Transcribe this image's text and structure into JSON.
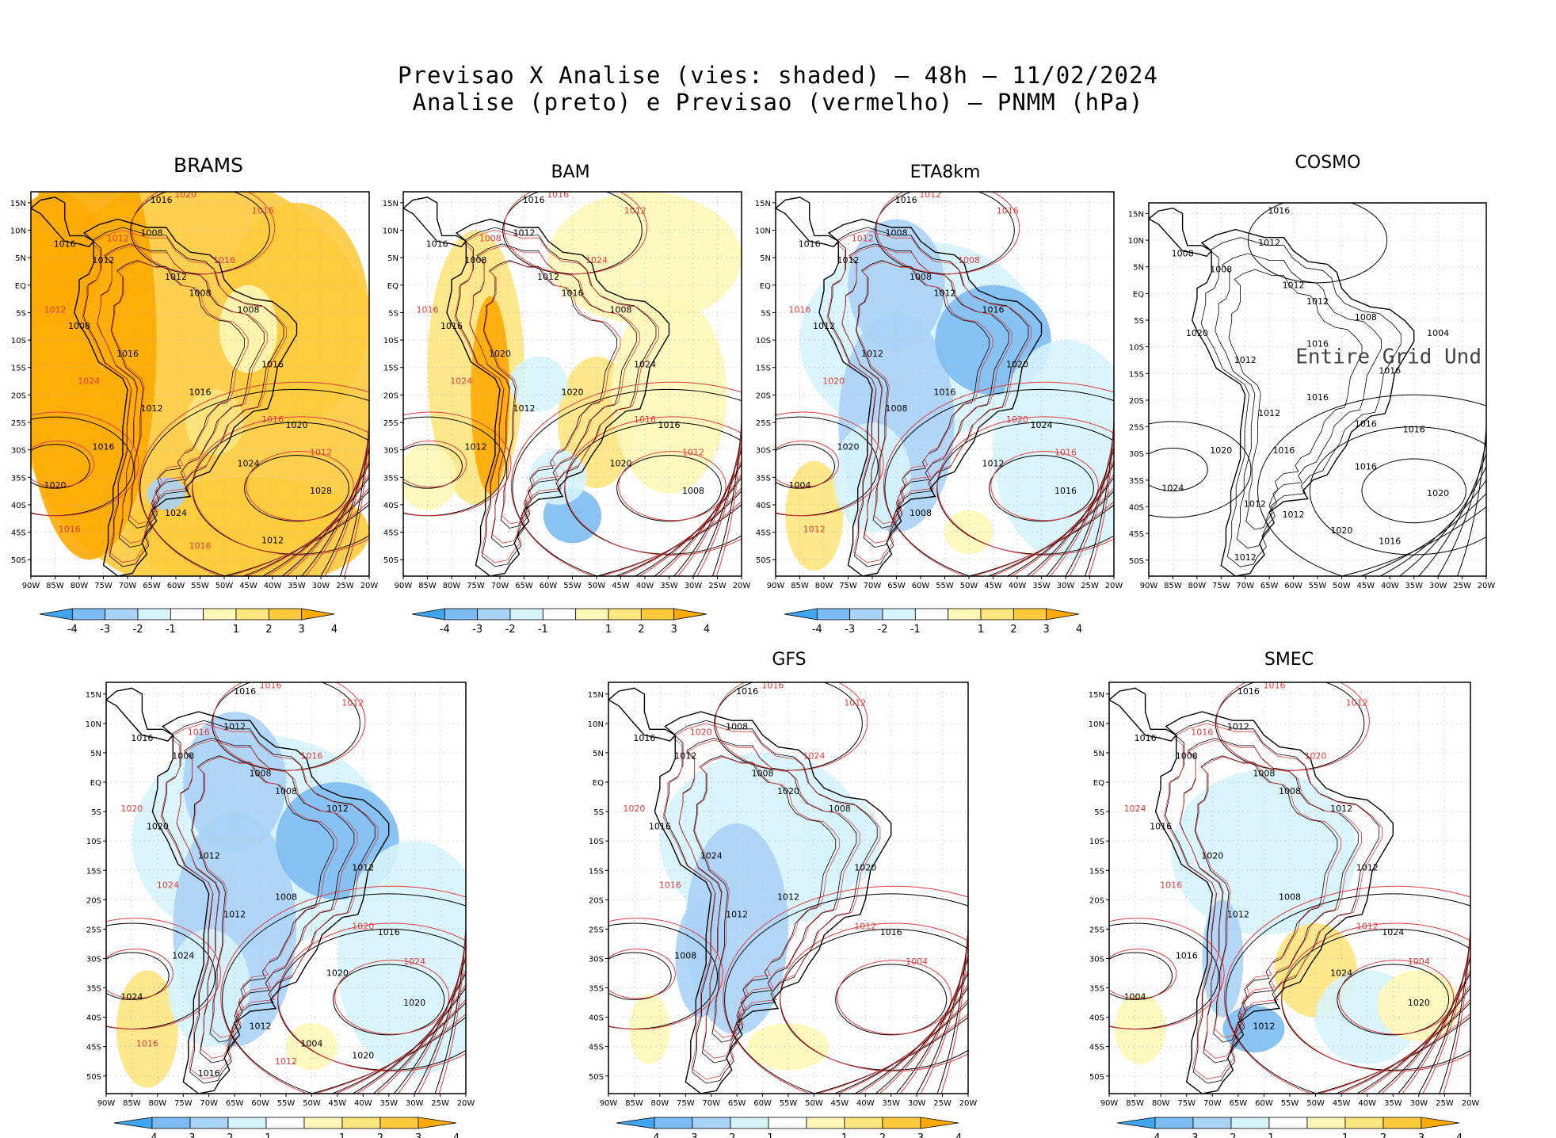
{
  "title_line1": "Previsao X Analise (vies: shaded) – 48h – 11/02/2024",
  "title_line2": "Analise (preto) e Previsao (vermelho) – PNMM (hPa)",
  "colors": {
    "analysis_contour": "#000000",
    "forecast_contour": "#e23c3c",
    "neg4": "#3fa6ee",
    "neg3": "#7cbcf3",
    "neg2": "#aad3f7",
    "neg1": "#d6f4fb",
    "pos1": "#fff8b8",
    "pos2": "#ffe680",
    "pos3": "#ffcb3c",
    "pos4": "#ffaa00",
    "land_outline": "#000000",
    "grid_dot": "#bbbbbb"
  },
  "chart_data": [
    {
      "type": "heatmap",
      "name": "BRAMS",
      "title": "BRAMS",
      "x_ticks": [
        "90W",
        "85W",
        "80W",
        "75W",
        "70W",
        "65W",
        "60W",
        "55W",
        "50W",
        "45W",
        "40W",
        "35W",
        "30W",
        "25W",
        "20W"
      ],
      "y_ticks": [
        "15N",
        "10N",
        "5N",
        "EQ",
        "5S",
        "10S",
        "15S",
        "20S",
        "25S",
        "30S",
        "35S",
        "40S",
        "45S",
        "50S"
      ],
      "xlim": [
        -90,
        -20
      ],
      "ylim": [
        -53,
        17
      ],
      "colorbar_ticks": [
        "-4",
        "-3",
        "-2",
        "-1",
        "1",
        "2",
        "3",
        "4"
      ],
      "bias_pattern": "warm",
      "contour_labels_analysis": [
        "1016",
        "1016",
        "1008",
        "1012",
        "1012",
        "1008",
        "1008",
        "1008",
        "1016",
        "1016",
        "1016",
        "1012",
        "1020",
        "1016",
        "1024",
        "1028",
        "1024",
        "1020",
        "1012"
      ],
      "contour_labels_forecast": [
        "1020",
        "1016",
        "1012",
        "1016",
        "1012",
        "1024",
        "1016",
        "1012",
        "1016",
        "1016"
      ],
      "grid": true
    },
    {
      "type": "heatmap",
      "name": "BAM",
      "title": "BAM",
      "x_ticks": [
        "90W",
        "85W",
        "80W",
        "75W",
        "70W",
        "65W",
        "60W",
        "55W",
        "50W",
        "45W",
        "40W",
        "35W",
        "30W",
        "25W",
        "20W"
      ],
      "y_ticks": [
        "15N",
        "10N",
        "5N",
        "EQ",
        "5S",
        "10S",
        "15S",
        "20S",
        "25S",
        "30S",
        "35S",
        "40S",
        "45S",
        "50S"
      ],
      "xlim": [
        -90,
        -20
      ],
      "ylim": [
        -53,
        17
      ],
      "colorbar_ticks": [
        "-4",
        "-3",
        "-2",
        "-1",
        "1",
        "2",
        "3",
        "4"
      ],
      "bias_pattern": "mixed",
      "contour_labels_analysis": [
        "1016",
        "1016",
        "1012",
        "1008",
        "1012",
        "1016",
        "1008",
        "1016",
        "1020",
        "1024",
        "1020",
        "1012",
        "1016",
        "1012",
        "1020",
        "1008"
      ],
      "contour_labels_forecast": [
        "1016",
        "1012",
        "1008",
        "1024",
        "1016",
        "1024",
        "1016",
        "1012"
      ],
      "grid": true
    },
    {
      "type": "heatmap",
      "name": "ETA8km",
      "title": "ETA8km",
      "x_ticks": [
        "90W",
        "85W",
        "80W",
        "75W",
        "70W",
        "65W",
        "60W",
        "55W",
        "50W",
        "45W",
        "40W",
        "35W",
        "30W",
        "25W",
        "20W"
      ],
      "y_ticks": [
        "15N",
        "10N",
        "5N",
        "EQ",
        "5S",
        "10S",
        "15S",
        "20S",
        "25S",
        "30S",
        "35S",
        "40S",
        "45S",
        "50S"
      ],
      "xlim": [
        -90,
        -20
      ],
      "ylim": [
        -53,
        17
      ],
      "colorbar_ticks": [
        "-4",
        "-3",
        "-2",
        "-1",
        "1",
        "2",
        "3",
        "4"
      ],
      "bias_pattern": "cold",
      "contour_labels_analysis": [
        "1016",
        "1016",
        "1008",
        "1012",
        "1008",
        "1012",
        "1016",
        "1012",
        "1012",
        "1020",
        "1016",
        "1008",
        "1024",
        "1020",
        "1012",
        "1016",
        "1008",
        "1004"
      ],
      "contour_labels_forecast": [
        "1012",
        "1016",
        "1012",
        "1008",
        "1016",
        "1020",
        "1020",
        "1016",
        "1012"
      ],
      "grid": true
    },
    {
      "type": "heatmap",
      "name": "COSMO",
      "title": "COSMO",
      "x_ticks": [
        "90W",
        "85W",
        "80W",
        "75W",
        "70W",
        "65W",
        "60W",
        "55W",
        "50W",
        "45W",
        "40W",
        "35W",
        "30W",
        "25W",
        "20W"
      ],
      "y_ticks": [
        "15N",
        "10N",
        "5N",
        "EQ",
        "5S",
        "10S",
        "15S",
        "20S",
        "25S",
        "30S",
        "35S",
        "40S",
        "45S",
        "50S"
      ],
      "xlim": [
        -90,
        -20
      ],
      "ylim": [
        -53,
        17
      ],
      "colorbar_ticks": [],
      "bias_pattern": "none",
      "annotation": "Entire Grid Und",
      "contour_labels_analysis": [
        "1016",
        "1008",
        "1012",
        "1008",
        "1012",
        "1012",
        "1008",
        "1020",
        "1012",
        "1016",
        "1016",
        "1012",
        "1016",
        "1020",
        "1016",
        "1020",
        "1012",
        "1024",
        "1016",
        "1012",
        "1020",
        "1016",
        "1004",
        "1012",
        "1016",
        "1016"
      ],
      "contour_labels_forecast": [],
      "grid": true
    },
    {
      "type": "heatmap",
      "name": "",
      "title": "",
      "x_ticks": [
        "90W",
        "85W",
        "80W",
        "75W",
        "70W",
        "65W",
        "60W",
        "55W",
        "50W",
        "45W",
        "40W",
        "35W",
        "30W",
        "25W",
        "20W"
      ],
      "y_ticks": [
        "15N",
        "10N",
        "5N",
        "EQ",
        "5S",
        "10S",
        "15S",
        "20S",
        "25S",
        "30S",
        "35S",
        "40S",
        "45S",
        "50S"
      ],
      "xlim": [
        -90,
        -20
      ],
      "ylim": [
        -53,
        17
      ],
      "colorbar_ticks": [
        "-4",
        "-3",
        "-2",
        "-1",
        "1",
        "2",
        "3",
        "4"
      ],
      "bias_pattern": "cold",
      "contour_labels_analysis": [
        "1016",
        "1016",
        "1012",
        "1008",
        "1008",
        "1008",
        "1012",
        "1020",
        "1012",
        "1012",
        "1008",
        "1012",
        "1016",
        "1024",
        "1020",
        "1020",
        "1012",
        "1024",
        "1020",
        "1016",
        "1004"
      ],
      "contour_labels_forecast": [
        "1016",
        "1012",
        "1016",
        "1016",
        "1020",
        "1024",
        "1020",
        "1024",
        "1016",
        "1012"
      ],
      "grid": true
    },
    {
      "type": "heatmap",
      "name": "GFS",
      "title": "GFS",
      "x_ticks": [
        "90W",
        "85W",
        "80W",
        "75W",
        "70W",
        "65W",
        "60W",
        "55W",
        "50W",
        "45W",
        "40W",
        "35W",
        "30W",
        "25W",
        "20W"
      ],
      "y_ticks": [
        "15N",
        "10N",
        "5N",
        "EQ",
        "5S",
        "10S",
        "15S",
        "20S",
        "25S",
        "30S",
        "35S",
        "40S",
        "45S",
        "50S"
      ],
      "xlim": [
        -90,
        -20
      ],
      "ylim": [
        -53,
        17
      ],
      "colorbar_ticks": [
        "-4",
        "-3",
        "-2",
        "-1",
        "1",
        "2",
        "3",
        "4"
      ],
      "bias_pattern": "cold_light",
      "contour_labels_analysis": [
        "1016",
        "1016",
        "1008",
        "1012",
        "1008",
        "1020",
        "1008",
        "1016",
        "1024",
        "1020",
        "1012",
        "1012",
        "1016",
        "1008"
      ],
      "contour_labels_forecast": [
        "1016",
        "1012",
        "1020",
        "1024",
        "1020",
        "1016",
        "1012",
        "1004"
      ],
      "grid": true
    },
    {
      "type": "heatmap",
      "name": "SMEC",
      "title": "SMEC",
      "x_ticks": [
        "90W",
        "85W",
        "80W",
        "75W",
        "70W",
        "65W",
        "60W",
        "55W",
        "50W",
        "45W",
        "40W",
        "35W",
        "30W",
        "25W",
        "20W"
      ],
      "y_ticks": [
        "15N",
        "10N",
        "5N",
        "EQ",
        "5S",
        "10S",
        "15S",
        "20S",
        "25S",
        "30S",
        "35S",
        "40S",
        "45S",
        "50S"
      ],
      "xlim": [
        -90,
        -20
      ],
      "ylim": [
        -53,
        17
      ],
      "colorbar_ticks": [
        "-4",
        "-3",
        "-2",
        "-1",
        "1",
        "2",
        "3",
        "4"
      ],
      "bias_pattern": "mixed_light",
      "contour_labels_analysis": [
        "1016",
        "1016",
        "1012",
        "1008",
        "1008",
        "1008",
        "1012",
        "1016",
        "1020",
        "1012",
        "1008",
        "1012",
        "1024",
        "1016",
        "1024",
        "1020",
        "1012",
        "1004"
      ],
      "contour_labels_forecast": [
        "1016",
        "1012",
        "1016",
        "1020",
        "1024",
        "1016",
        "1012",
        "1004"
      ],
      "grid": true
    }
  ]
}
